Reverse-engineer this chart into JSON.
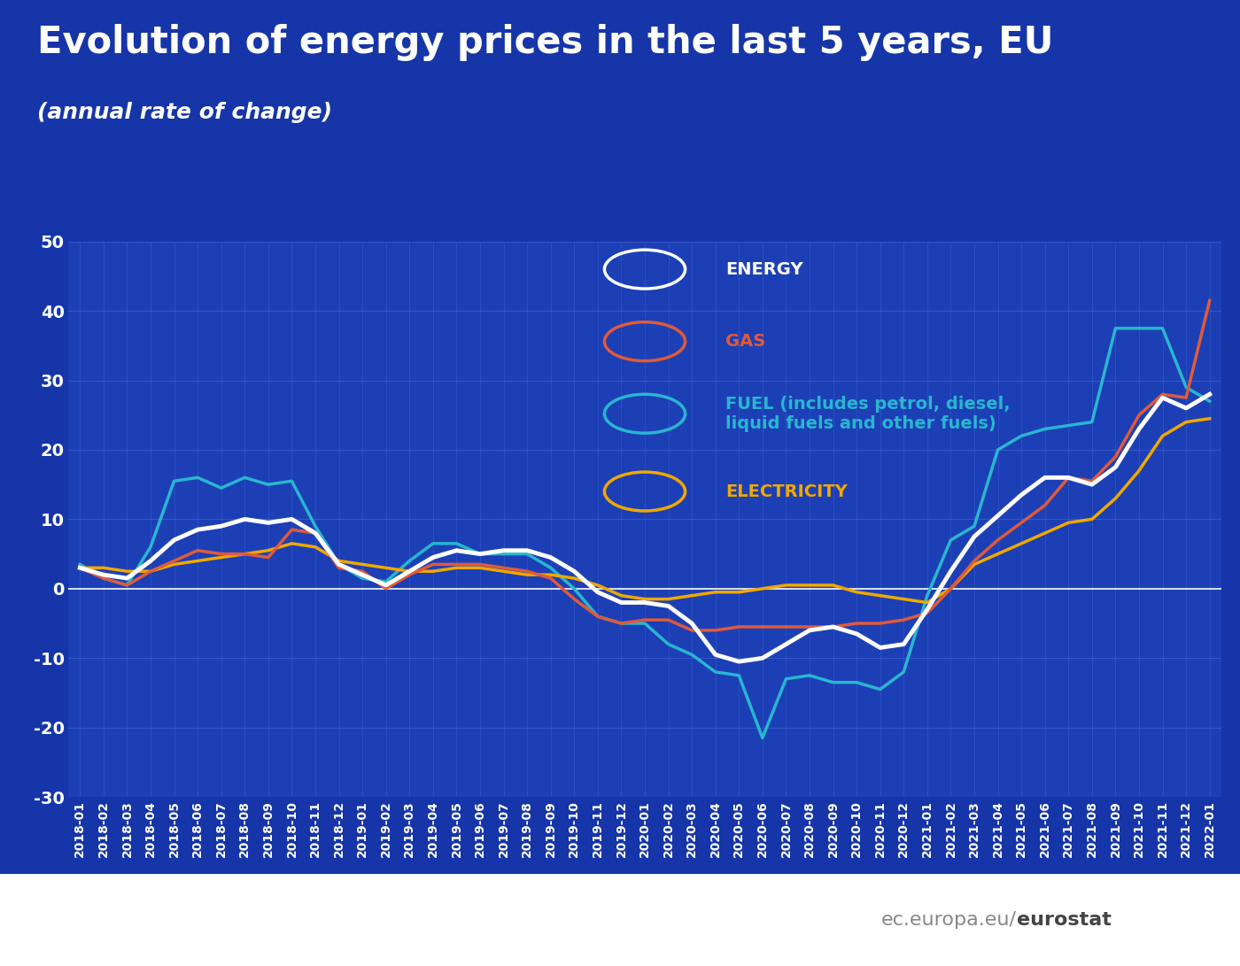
{
  "title": "Evolution of energy prices in the last 5 years, EU",
  "subtitle": "(annual rate of change)",
  "bg_color": "#1535a8",
  "plot_bg_color": "#1c3fb5",
  "grid_color": "#2a54c8",
  "text_color": "#ffffff",
  "watermark_bg": "#ffffff",
  "watermark_text_color": "#808080",
  "watermark_bold_color": "#404040",
  "ylim": [
    -30,
    50
  ],
  "yticks": [
    -30,
    -20,
    -10,
    0,
    10,
    20,
    30,
    40,
    50
  ],
  "legend_labels": [
    "ENERGY",
    "GAS",
    "FUEL (includes petrol, diesel,\nliquid fuels and other fuels)",
    "ELECTRICITY"
  ],
  "legend_colors": [
    "#ffffff",
    "#e05a3a",
    "#29b6d0",
    "#f0a800"
  ],
  "watermark": "ec.europa.eu/eurostat",
  "labels": [
    "2018-01",
    "2018-02",
    "2018-03",
    "2018-04",
    "2018-05",
    "2018-06",
    "2018-07",
    "2018-08",
    "2018-09",
    "2018-10",
    "2018-11",
    "2018-12",
    "2019-01",
    "2019-02",
    "2019-03",
    "2019-04",
    "2019-05",
    "2019-06",
    "2019-07",
    "2019-08",
    "2019-09",
    "2019-10",
    "2019-11",
    "2019-12",
    "2020-01",
    "2020-02",
    "2020-03",
    "2020-04",
    "2020-05",
    "2020-06",
    "2020-07",
    "2020-08",
    "2020-09",
    "2020-10",
    "2020-11",
    "2020-12",
    "2021-01",
    "2021-02",
    "2021-03",
    "2021-04",
    "2021-05",
    "2021-06",
    "2021-07",
    "2021-08",
    "2021-09",
    "2021-10",
    "2021-11",
    "2021-12",
    "2022-01"
  ],
  "energy": [
    3.0,
    2.0,
    1.5,
    4.0,
    7.0,
    8.5,
    9.0,
    10.0,
    9.5,
    10.0,
    8.0,
    3.5,
    2.0,
    0.5,
    2.5,
    4.5,
    5.5,
    5.0,
    5.5,
    5.5,
    4.5,
    2.5,
    -0.5,
    -2.0,
    -2.0,
    -2.5,
    -5.0,
    -9.5,
    -10.5,
    -10.0,
    -8.0,
    -6.0,
    -5.5,
    -6.5,
    -8.5,
    -8.0,
    -3.0,
    2.5,
    7.5,
    10.5,
    13.5,
    16.0,
    16.0,
    15.0,
    17.5,
    23.0,
    27.5,
    26.0,
    28.0
  ],
  "gas": [
    3.0,
    1.5,
    0.5,
    2.5,
    4.0,
    5.5,
    5.0,
    5.0,
    4.5,
    8.5,
    8.0,
    3.0,
    2.5,
    0.0,
    2.0,
    3.5,
    3.5,
    3.5,
    3.0,
    2.5,
    1.5,
    -1.5,
    -4.0,
    -5.0,
    -4.5,
    -4.5,
    -6.0,
    -6.0,
    -5.5,
    -5.5,
    -5.5,
    -5.5,
    -5.5,
    -5.0,
    -5.0,
    -4.5,
    -3.5,
    0.0,
    4.0,
    7.0,
    9.5,
    12.0,
    16.0,
    15.5,
    19.0,
    25.0,
    28.0,
    27.5,
    41.5
  ],
  "fuel": [
    3.5,
    1.5,
    0.5,
    6.0,
    15.5,
    16.0,
    14.5,
    16.0,
    15.0,
    15.5,
    9.0,
    3.5,
    1.5,
    1.0,
    4.0,
    6.5,
    6.5,
    5.0,
    5.0,
    5.0,
    3.0,
    0.0,
    -4.0,
    -5.0,
    -5.0,
    -8.0,
    -9.5,
    -12.0,
    -12.5,
    -21.5,
    -13.0,
    -12.5,
    -13.5,
    -13.5,
    -14.5,
    -12.0,
    -1.0,
    7.0,
    9.0,
    20.0,
    22.0,
    23.0,
    23.5,
    24.0,
    37.5,
    37.5,
    37.5,
    29.0,
    27.0
  ],
  "electricity": [
    3.0,
    3.0,
    2.5,
    2.5,
    3.5,
    4.0,
    4.5,
    5.0,
    5.5,
    6.5,
    6.0,
    4.0,
    3.5,
    3.0,
    2.5,
    2.5,
    3.0,
    3.0,
    2.5,
    2.0,
    2.0,
    1.5,
    0.5,
    -1.0,
    -1.5,
    -1.5,
    -1.0,
    -0.5,
    -0.5,
    0.0,
    0.5,
    0.5,
    0.5,
    -0.5,
    -1.0,
    -1.5,
    -2.0,
    0.0,
    3.5,
    5.0,
    6.5,
    8.0,
    9.5,
    10.0,
    13.0,
    17.0,
    22.0,
    24.0,
    24.5
  ],
  "title_fontsize": 30,
  "subtitle_fontsize": 18,
  "tick_fontsize": 10,
  "ytick_fontsize": 14,
  "legend_fontsize": 14
}
